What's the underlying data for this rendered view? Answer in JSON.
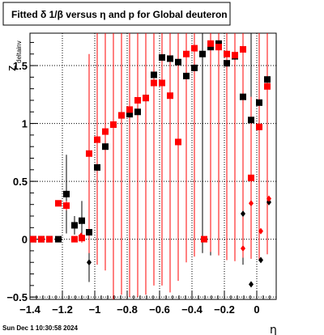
{
  "chart_data": {
    "type": "scatter",
    "title": "Fitted δ 1/β versus η and p for Global deuteron",
    "xlabel": "η",
    "ylabel": "z",
    "ylabel_sub": "deltainv",
    "timestamp": "Sun Dec  1 10:30:58 2024",
    "xlim": [
      -1.4,
      0.12
    ],
    "ylim": [
      -0.52,
      1.78
    ],
    "x_ticks": [
      -1.4,
      -1.2,
      -1,
      -0.8,
      -0.6,
      -0.4,
      -0.2,
      0
    ],
    "x_tick_labels": [
      "−1.4",
      "−1.2",
      "−1",
      "−0.8",
      "−0.6",
      "−0.4",
      "−0.2",
      "0"
    ],
    "y_ticks": [
      -0.5,
      0,
      0.5,
      1,
      1.5
    ],
    "y_tick_labels": [
      "−0.5",
      "0",
      "0.5",
      "1",
      "1.5"
    ],
    "grid": true,
    "series": [
      {
        "color": "#000000",
        "marker": "square",
        "points": [
          {
            "x": -1.38,
            "y": 0.0,
            "err": 0.0
          },
          {
            "x": -1.33,
            "y": 0.0,
            "err": 0.0
          },
          {
            "x": -1.28,
            "y": 0.0,
            "err": 0.0
          },
          {
            "x": -1.225,
            "y": 0.0,
            "err": 0.0
          },
          {
            "x": -1.175,
            "y": 0.39,
            "err": 0.34
          },
          {
            "x": -1.125,
            "y": 0.12,
            "err": 0.08
          },
          {
            "x": -1.08,
            "y": 0.16,
            "err": 0.17
          },
          {
            "x": -1.035,
            "y": 0.06,
            "err": 0.43
          },
          {
            "x": -0.985,
            "y": 0.62,
            "err": 0.43
          },
          {
            "x": -0.935,
            "y": 0.8,
            "err": 0.51
          },
          {
            "x": -0.885,
            "y": 0.99,
            "err": 0.54
          },
          {
            "x": -0.835,
            "y": 1.07,
            "err": 0.72
          },
          {
            "x": -0.785,
            "y": 1.08,
            "err": 0.7
          },
          {
            "x": -0.735,
            "y": 1.1,
            "err": 0.75
          },
          {
            "x": -0.685,
            "y": 1.22,
            "err": 1.2
          },
          {
            "x": -0.635,
            "y": 1.42,
            "err": 1.55
          },
          {
            "x": -0.585,
            "y": 1.57,
            "err": 1.74
          },
          {
            "x": -0.535,
            "y": 1.56,
            "err": 1.77
          },
          {
            "x": -0.485,
            "y": 1.53,
            "err": 1.75
          },
          {
            "x": -0.435,
            "y": 1.41,
            "err": 1.42
          },
          {
            "x": -0.385,
            "y": 1.48,
            "err": 1.53
          },
          {
            "x": -0.335,
            "y": 1.6,
            "err": 1.72
          },
          {
            "x": -0.285,
            "y": 1.66,
            "err": 1.8
          },
          {
            "x": -0.235,
            "y": 1.69,
            "err": 1.8
          },
          {
            "x": -0.185,
            "y": 1.52,
            "err": 1.7
          },
          {
            "x": -0.135,
            "y": 1.58,
            "err": 1.74
          },
          {
            "x": -0.085,
            "y": 1.23,
            "err": 1.45
          },
          {
            "x": -0.035,
            "y": 1.03,
            "err": 1.05
          },
          {
            "x": 0.015,
            "y": 1.18,
            "err": 1.25
          },
          {
            "x": 0.065,
            "y": 1.38,
            "err": 1.4
          }
        ]
      },
      {
        "color": "#ff0000",
        "marker": "square",
        "points": [
          {
            "x": -1.38,
            "y": 0.0,
            "err": 0.0
          },
          {
            "x": -1.33,
            "y": 0.0,
            "err": 0.0
          },
          {
            "x": -1.28,
            "y": 0.0,
            "err": 0.0
          },
          {
            "x": -1.225,
            "y": 0.31,
            "err": 0.02
          },
          {
            "x": -1.175,
            "y": 0.29,
            "err": 0.04
          },
          {
            "x": -1.125,
            "y": 0.0,
            "err": 0.0
          },
          {
            "x": -1.08,
            "y": 0.01,
            "err": 0.04
          },
          {
            "x": -1.035,
            "y": 0.74,
            "err": 0.86
          },
          {
            "x": -0.985,
            "y": 0.86,
            "err": 1.08
          },
          {
            "x": -0.935,
            "y": 0.93,
            "err": 1.2
          },
          {
            "x": -0.885,
            "y": 0.99,
            "err": 1.55
          },
          {
            "x": -0.835,
            "y": 1.07,
            "err": 1.55
          },
          {
            "x": -0.785,
            "y": 1.12,
            "err": 1.62
          },
          {
            "x": -0.735,
            "y": 1.2,
            "err": 1.7
          },
          {
            "x": -0.685,
            "y": 1.22,
            "err": 1.7
          },
          {
            "x": -0.635,
            "y": 1.35,
            "err": 1.75
          },
          {
            "x": -0.585,
            "y": 1.35,
            "err": 1.75
          },
          {
            "x": -0.535,
            "y": 1.24,
            "err": 1.7
          },
          {
            "x": -0.485,
            "y": 0.84,
            "err": 1.2
          },
          {
            "x": -0.435,
            "y": 1.6,
            "err": 1.8
          },
          {
            "x": -0.385,
            "y": 1.65,
            "err": 1.8
          },
          {
            "x": -0.325,
            "y": 0.0,
            "err": 0.02
          },
          {
            "x": -0.285,
            "y": 1.69,
            "err": 1.8
          },
          {
            "x": -0.235,
            "y": 1.66,
            "err": 1.8
          },
          {
            "x": -0.185,
            "y": 1.6,
            "err": 1.78
          },
          {
            "x": -0.135,
            "y": 1.59,
            "err": 1.78
          },
          {
            "x": -0.085,
            "y": 1.64,
            "err": 1.8
          },
          {
            "x": -0.035,
            "y": 0.53,
            "err": 0.7
          },
          {
            "x": 0.015,
            "y": 0.97,
            "err": 1.15
          },
          {
            "x": 0.065,
            "y": 1.32,
            "err": 1.45
          }
        ]
      },
      {
        "color": "#000000",
        "marker": "diamond",
        "points": [
          {
            "x": -1.035,
            "y": -0.2
          },
          {
            "x": -0.085,
            "y": 0.22
          },
          {
            "x": -0.035,
            "y": -0.39
          },
          {
            "x": 0.025,
            "y": -0.18
          },
          {
            "x": 0.075,
            "y": 0.32
          }
        ]
      },
      {
        "color": "#ff0000",
        "marker": "diamond",
        "points": [
          {
            "x": -1.085,
            "y": 0.03
          },
          {
            "x": -0.085,
            "y": -0.08
          },
          {
            "x": -0.035,
            "y": 0.31
          },
          {
            "x": 0.025,
            "y": 0.07
          },
          {
            "x": 0.075,
            "y": 0.35
          }
        ]
      }
    ]
  }
}
